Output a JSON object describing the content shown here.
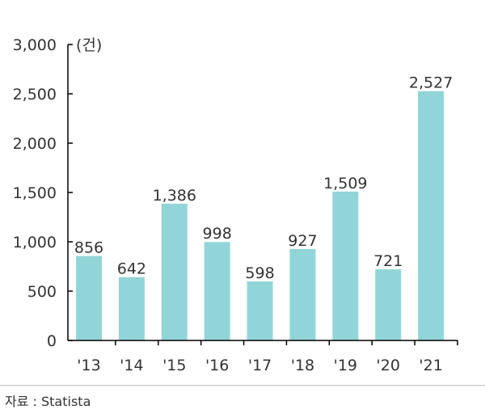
{
  "chart_data": {
    "type": "bar",
    "categories": [
      "'13",
      "'14",
      "'15",
      "'16",
      "'17",
      "'18",
      "'19",
      "'20",
      "'21"
    ],
    "values": [
      856,
      642,
      1386,
      998,
      598,
      927,
      1509,
      721,
      2527
    ],
    "value_labels": [
      "856",
      "642",
      "1,386",
      "998",
      "598",
      "927",
      "1,509",
      "721",
      "2,527"
    ],
    "ylim": [
      0,
      3000
    ],
    "yticks": [
      0,
      500,
      1000,
      1500,
      2000,
      2500,
      3000
    ],
    "ytick_labels": [
      "0",
      "500",
      "1,000",
      "1,500",
      "2,000",
      "2,500",
      "3,000"
    ],
    "unit": "(건)",
    "grid": false,
    "bar_color": "#92d5d8",
    "axis_color": "#000000"
  },
  "source": "자료 : Statista"
}
